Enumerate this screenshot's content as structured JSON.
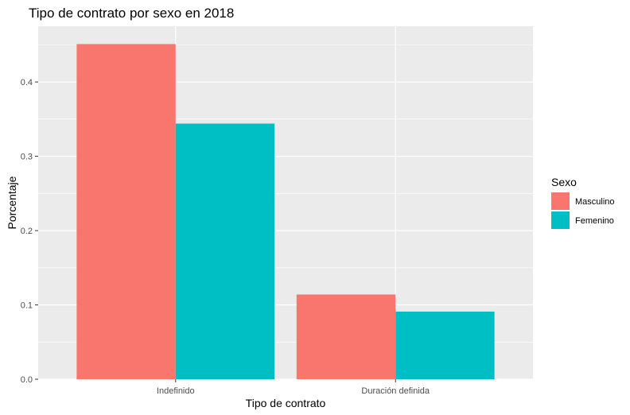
{
  "chart_data": {
    "type": "bar",
    "title": "Tipo de contrato por sexo en 2018",
    "xlabel": "Tipo de contrato",
    "ylabel": "Porcentaje",
    "categories": [
      "Indefinido",
      "Duración definida"
    ],
    "series": [
      {
        "name": "Masculino",
        "values": [
          0.451,
          0.114
        ],
        "color": "#F8766D"
      },
      {
        "name": "Femenino",
        "values": [
          0.344,
          0.091
        ],
        "color": "#00BFC4"
      }
    ],
    "ylim": [
      0,
      0.475
    ],
    "yticks": [
      0.0,
      0.1,
      0.2,
      0.3,
      0.4
    ],
    "ytick_labels": [
      "0.0",
      "0.1",
      "0.2",
      "0.3",
      "0.4"
    ],
    "legend": {
      "title": "Sexo",
      "position": "right"
    },
    "grid": true,
    "panel_background": "#EBEBEB",
    "grid_color": "#FFFFFF"
  }
}
